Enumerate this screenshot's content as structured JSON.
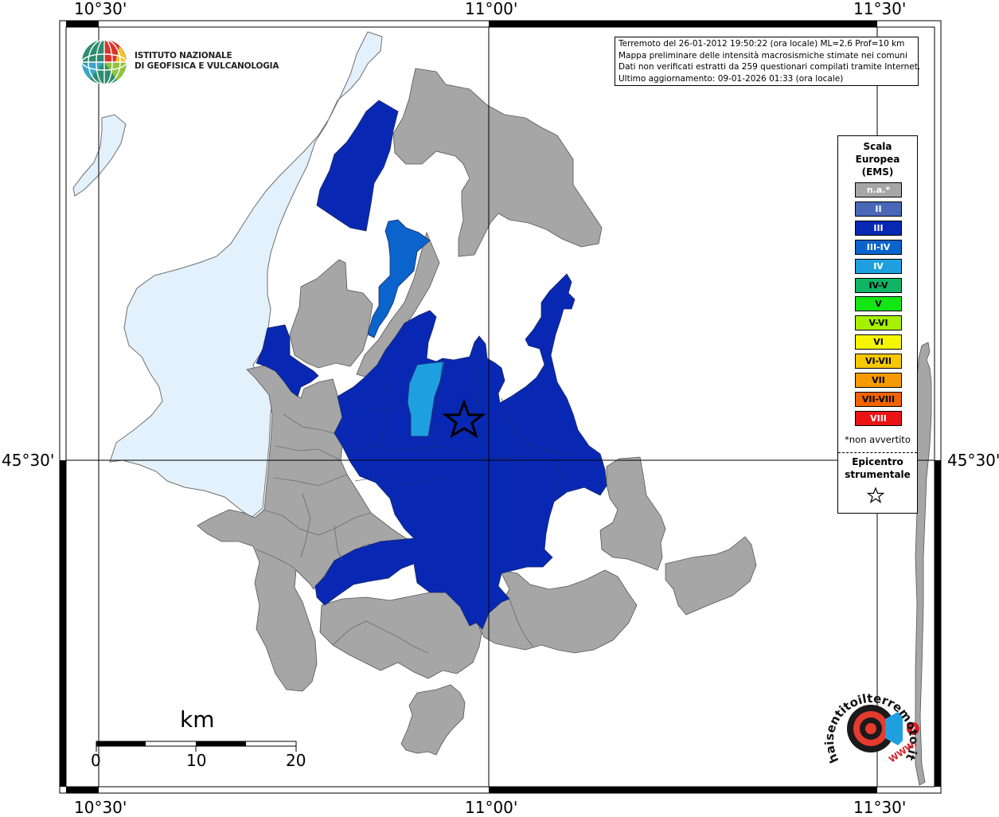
{
  "coords": {
    "top": [
      "10°30'",
      "11°00'",
      "11°30'"
    ],
    "bottom": [
      "10°30'",
      "11°00'",
      "11°30'"
    ],
    "left": "45°30'",
    "right": "45°30'"
  },
  "institute": {
    "line1": "ISTITUTO NAZIONALE",
    "line2": "DI GEOFISICA E VULCANOLOGIA"
  },
  "info": {
    "line1": "Terremoto del 26-01-2012 19:50:22 (ora locale) ML=2.6 Prof=10 km",
    "line2": "Mappa preliminare delle intensità macrosismiche stimate nei comuni",
    "line3": "Dati non verificati estratti da 259 questionari compilati tramite Internet.",
    "line4": "Ultimo aggiornamento: 09-01-2026 01:33 (ora locale)"
  },
  "legend": {
    "title1": "Scala",
    "title2": "Europea",
    "title3": "(EMS)",
    "items": [
      {
        "label": "n.a.*",
        "color": "#a6a6a6",
        "text_color": "#ffffff"
      },
      {
        "label": "II",
        "color": "#4a68b8",
        "text_color": "#ffffff"
      },
      {
        "label": "III",
        "color": "#0828b4",
        "text_color": "#ffffff"
      },
      {
        "label": "III-IV",
        "color": "#0a64cc",
        "text_color": "#ffffff"
      },
      {
        "label": "IV",
        "color": "#1ea0e0",
        "text_color": "#ffffff"
      },
      {
        "label": "IV-V",
        "color": "#0fb464",
        "text_color": "#000000"
      },
      {
        "label": "V",
        "color": "#14e614",
        "text_color": "#000000"
      },
      {
        "label": "V-VI",
        "color": "#a6f000",
        "text_color": "#000000"
      },
      {
        "label": "VI",
        "color": "#f5f500",
        "text_color": "#000000"
      },
      {
        "label": "VI-VII",
        "color": "#f5c800",
        "text_color": "#000000"
      },
      {
        "label": "VII",
        "color": "#f59a00",
        "text_color": "#000000"
      },
      {
        "label": "VII-VIII",
        "color": "#f06400",
        "text_color": "#000000"
      },
      {
        "label": "VIII",
        "color": "#eb1414",
        "text_color": "#ffffff"
      }
    ],
    "note": "*non avvertito",
    "epi1": "Epicentro",
    "epi2": "strumentale"
  },
  "scale": {
    "unit": "km",
    "ticks": [
      "0",
      "10",
      "20"
    ]
  },
  "brand": {
    "text": "haisentitoilterremoto.it",
    "url": "WWW."
  },
  "colors": {
    "lake": "#e2f1fb",
    "na": "#a6a6a6",
    "iii": "#0828b4",
    "iii_iv": "#0a64cc",
    "iv": "#1ea0e0"
  }
}
